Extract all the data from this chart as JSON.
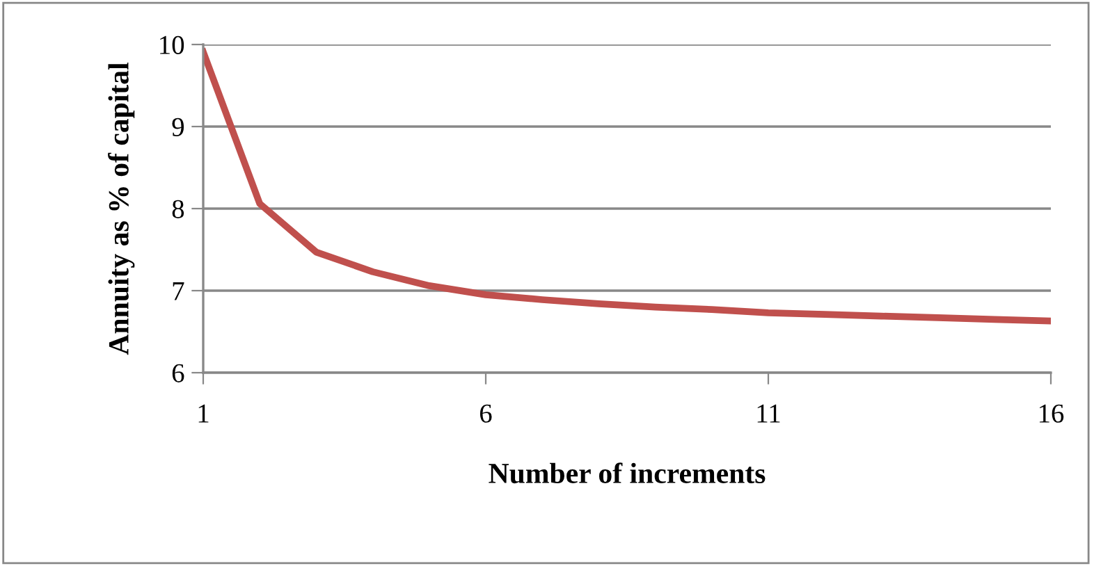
{
  "chart_data": {
    "type": "line",
    "xlabel": "Number of increments",
    "ylabel": "Annuity as % of capital",
    "categories": [
      "1",
      null,
      null,
      null,
      null,
      "6",
      null,
      null,
      null,
      null,
      "11",
      null,
      null,
      null,
      null,
      "16"
    ],
    "series": [
      {
        "color": "#c0504d",
        "values": [
          9.91,
          8.06,
          7.47,
          7.23,
          7.06,
          6.95,
          6.89,
          6.84,
          6.8,
          6.77,
          6.73,
          6.71,
          6.69,
          6.67,
          6.65,
          6.63
        ]
      }
    ],
    "ylim": [
      6,
      10
    ],
    "yticks": [
      6,
      7,
      8,
      9,
      10
    ],
    "grid": "y",
    "legend": false,
    "marker": "none",
    "line_style": "solid"
  }
}
